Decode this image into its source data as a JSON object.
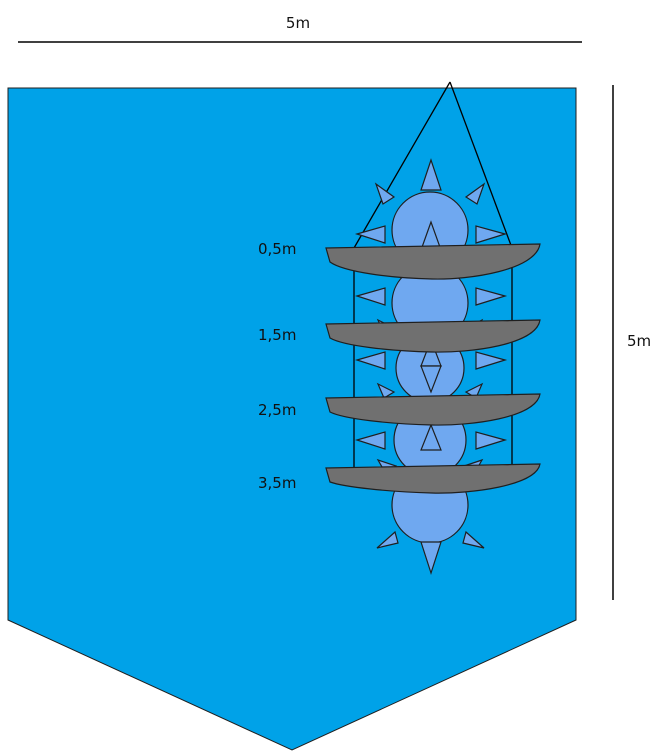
{
  "dimensions": {
    "width_label": "5m",
    "height_label": "5m"
  },
  "depth_labels": [
    "0,5m",
    "1,5m",
    "2,5m",
    "3,5m"
  ],
  "colors": {
    "water": "#00A2E8",
    "bubble": "#6FA8F0",
    "shelf": "#707070",
    "outline": "#1f1f1f",
    "line": "#000000"
  }
}
